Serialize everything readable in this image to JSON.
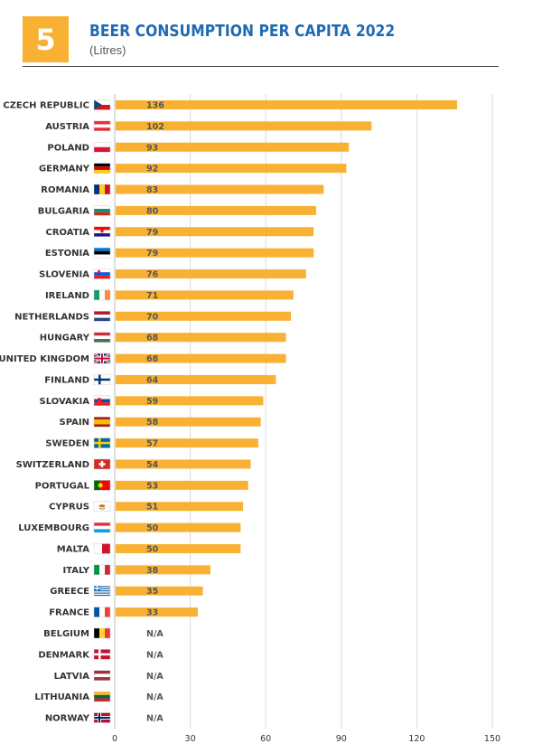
{
  "header": {
    "badge_number": "5",
    "title": "BEER CONSUMPTION PER CAPITA 2022",
    "subtitle": "(Litres)"
  },
  "colors": {
    "bar": "#f8b133",
    "title": "#1f69b1",
    "badge": "#f8b133"
  },
  "chart_data": {
    "type": "bar",
    "orientation": "horizontal",
    "grid": "vertical",
    "xlim": [
      0,
      150
    ],
    "xticks": [
      0,
      30,
      60,
      90,
      120,
      150
    ],
    "na_label": "N/A",
    "categories": [
      "CZECH REPUBLIC",
      "AUSTRIA",
      "POLAND",
      "GERMANY",
      "ROMANIA",
      "BULGARIA",
      "CROATIA",
      "ESTONIA",
      "SLOVENIA",
      "IRELAND",
      "NETHERLANDS",
      "HUNGARY",
      "UNITED KINGDOM",
      "FINLAND",
      "SLOVAKIA",
      "SPAIN",
      "SWEDEN",
      "SWITZERLAND",
      "PORTUGAL",
      "CYPRUS",
      "LUXEMBOURG",
      "MALTA",
      "ITALY",
      "GREECE",
      "FRANCE",
      "BELGIUM",
      "DENMARK",
      "LATVIA",
      "LITHUANIA",
      "NORWAY"
    ],
    "values": [
      136,
      102,
      93,
      92,
      83,
      80,
      79,
      79,
      76,
      71,
      70,
      68,
      68,
      64,
      59,
      58,
      57,
      54,
      53,
      51,
      50,
      50,
      38,
      35,
      33,
      null,
      null,
      null,
      null,
      null
    ],
    "flags": [
      [
        "#ffffff",
        "#d7141a",
        "#11457e",
        "cz-flag-icon"
      ],
      [
        "#ed2939",
        "#ffffff",
        "#ed2939",
        "at-flag-icon"
      ],
      [
        "#ffffff",
        "#dc143c",
        "",
        "pl-flag-icon"
      ],
      [
        "#000000",
        "#dd0000",
        "#ffce00",
        "de-flag-icon"
      ],
      [
        "#002b7f",
        "#fcd116",
        "#ce1126",
        "ro-flag-icon"
      ],
      [
        "#ffffff",
        "#00966e",
        "#d62612",
        "bg-flag-icon"
      ],
      [
        "#ff0000",
        "#ffffff",
        "#171796",
        "hr-flag-icon"
      ],
      [
        "#0072ce",
        "#000000",
        "#ffffff",
        "ee-flag-icon"
      ],
      [
        "#ffffff",
        "#005ce5",
        "#ed1c24",
        "si-flag-icon"
      ],
      [
        "#169b62",
        "#ffffff",
        "#ff883e",
        "ie-flag-icon"
      ],
      [
        "#ae1c28",
        "#ffffff",
        "#21468b",
        "nl-flag-icon"
      ],
      [
        "#ce2939",
        "#ffffff",
        "#477050",
        "hu-flag-icon"
      ],
      [
        "#012169",
        "#ffffff",
        "#c8102e",
        "uk-flag-icon"
      ],
      [
        "#ffffff",
        "#003580",
        "",
        "fi-flag-icon"
      ],
      [
        "#ffffff",
        "#0b4ea2",
        "#ee1c25",
        "sk-flag-icon"
      ],
      [
        "#aa151b",
        "#f1bf00",
        "#aa151b",
        "es-flag-icon"
      ],
      [
        "#006aa7",
        "#fecc00",
        "",
        "se-flag-icon"
      ],
      [
        "#d52b1e",
        "#ffffff",
        "",
        "ch-flag-icon"
      ],
      [
        "#006600",
        "#ff0000",
        "",
        "pt-flag-icon"
      ],
      [
        "#ffffff",
        "#d57800",
        "",
        "cy-flag-icon"
      ],
      [
        "#ed2939",
        "#ffffff",
        "#00a1de",
        "lu-flag-icon"
      ],
      [
        "#ffffff",
        "#cf142b",
        "",
        "mt-flag-icon"
      ],
      [
        "#009246",
        "#ffffff",
        "#ce2b37",
        "it-flag-icon"
      ],
      [
        "#0d5eaf",
        "#ffffff",
        "",
        "gr-flag-icon"
      ],
      [
        "#0055a4",
        "#ffffff",
        "#ef4135",
        "fr-flag-icon"
      ],
      [
        "#000000",
        "#fdda24",
        "#ef3340",
        "be-flag-icon"
      ],
      [
        "#c8102e",
        "#ffffff",
        "",
        "dk-flag-icon"
      ],
      [
        "#9e3039",
        "#ffffff",
        "#9e3039",
        "lv-flag-icon"
      ],
      [
        "#fdb913",
        "#006a44",
        "#c1272d",
        "lt-flag-icon"
      ],
      [
        "#ba0c2f",
        "#ffffff",
        "#00205b",
        "no-flag-icon"
      ]
    ]
  }
}
